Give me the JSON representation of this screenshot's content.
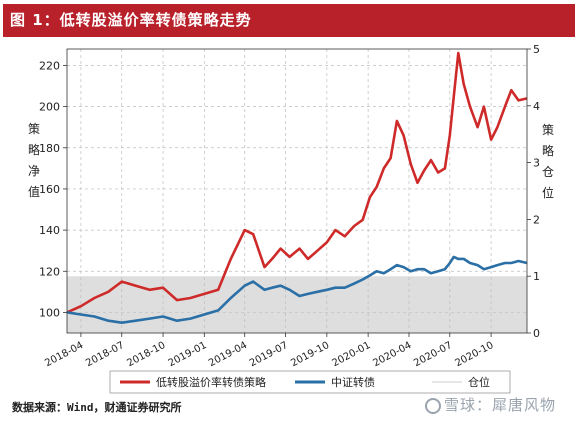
{
  "title": "图 1：低转股溢价率转债策略走势",
  "source": "数据来源：Wind，财通证券研究所",
  "watermark": "雪球：犀唐风物",
  "colors": {
    "brand": "#b8202a",
    "strategy": "#cf2a2a",
    "index": "#2a6fa6",
    "position": "#dedede"
  },
  "chart_data": {
    "type": "line",
    "x_tick_labels": [
      "2018-04",
      "2018-07",
      "2018-10",
      "2019-01",
      "2019-04",
      "2019-07",
      "2019-10",
      "2020-01",
      "2020-04",
      "2020-07",
      "2020-10"
    ],
    "x_ticks": [
      "2018-04-01",
      "2018-07-01",
      "2018-10-01",
      "2019-01-01",
      "2019-04-01",
      "2019-07-01",
      "2019-10-01",
      "2020-01-01",
      "2020-04-01",
      "2020-07-01",
      "2020-10-01"
    ],
    "x_range": [
      "2018-03-01",
      "2020-12-20"
    ],
    "ylabel_left": "策略净值",
    "ylabel_right": "策略仓位",
    "ylim_left": [
      90,
      228
    ],
    "yticks_left": [
      100,
      120,
      140,
      160,
      180,
      200,
      220
    ],
    "ylim_right": [
      0,
      5
    ],
    "yticks_right": [
      0,
      1,
      2,
      3,
      4,
      5
    ],
    "grid": true,
    "legend_position": "bottom",
    "series": [
      {
        "name": "低转股溢价率转债策略",
        "axis": "left",
        "color": "#cf2a2a",
        "x": [
          "2018-03-01",
          "2018-04-01",
          "2018-05-01",
          "2018-06-01",
          "2018-07-01",
          "2018-08-01",
          "2018-09-01",
          "2018-10-01",
          "2018-11-01",
          "2018-12-01",
          "2019-01-01",
          "2019-02-01",
          "2019-03-01",
          "2019-04-01",
          "2019-04-20",
          "2019-05-15",
          "2019-06-01",
          "2019-06-20",
          "2019-07-10",
          "2019-08-01",
          "2019-08-20",
          "2019-09-10",
          "2019-10-01",
          "2019-10-20",
          "2019-11-10",
          "2019-12-01",
          "2019-12-20",
          "2020-01-05",
          "2020-01-20",
          "2020-02-05",
          "2020-02-20",
          "2020-03-05",
          "2020-03-20",
          "2020-04-05",
          "2020-04-20",
          "2020-05-05",
          "2020-05-20",
          "2020-06-05",
          "2020-06-20",
          "2020-07-01",
          "2020-07-10",
          "2020-07-20",
          "2020-08-01",
          "2020-08-15",
          "2020-09-01",
          "2020-09-15",
          "2020-10-01",
          "2020-10-15",
          "2020-11-01",
          "2020-11-15",
          "2020-12-01",
          "2020-12-20"
        ],
        "y": [
          100,
          103,
          107,
          110,
          115,
          113,
          111,
          112,
          106,
          107,
          109,
          111,
          126,
          140,
          138,
          122,
          126,
          131,
          127,
          131,
          126,
          130,
          134,
          140,
          137,
          142,
          145,
          156,
          161,
          170,
          175,
          193,
          186,
          172,
          163,
          169,
          174,
          168,
          170,
          186,
          205,
          226,
          211,
          200,
          190,
          200,
          184,
          190,
          200,
          208,
          203,
          204
        ]
      },
      {
        "name": "中证转债",
        "axis": "left",
        "color": "#2a6fa6",
        "x": [
          "2018-03-01",
          "2018-04-01",
          "2018-05-01",
          "2018-06-01",
          "2018-07-01",
          "2018-08-01",
          "2018-09-01",
          "2018-10-01",
          "2018-11-01",
          "2018-12-01",
          "2019-01-01",
          "2019-02-01",
          "2019-03-01",
          "2019-04-01",
          "2019-04-20",
          "2019-05-15",
          "2019-06-01",
          "2019-06-20",
          "2019-07-10",
          "2019-08-01",
          "2019-08-20",
          "2019-09-10",
          "2019-10-01",
          "2019-10-20",
          "2019-11-10",
          "2019-12-01",
          "2019-12-20",
          "2020-01-05",
          "2020-01-20",
          "2020-02-05",
          "2020-02-20",
          "2020-03-05",
          "2020-03-20",
          "2020-04-05",
          "2020-04-20",
          "2020-05-05",
          "2020-05-20",
          "2020-06-05",
          "2020-06-20",
          "2020-07-01",
          "2020-07-10",
          "2020-07-20",
          "2020-08-01",
          "2020-08-15",
          "2020-09-01",
          "2020-09-15",
          "2020-10-01",
          "2020-10-15",
          "2020-11-01",
          "2020-11-15",
          "2020-12-01",
          "2020-12-20"
        ],
        "y": [
          100,
          99,
          98,
          96,
          95,
          96,
          97,
          98,
          96,
          97,
          99,
          101,
          107,
          113,
          115,
          111,
          112,
          113,
          111,
          108,
          109,
          110,
          111,
          112,
          112,
          114,
          116,
          118,
          120,
          119,
          121,
          123,
          122,
          120,
          121,
          121,
          119,
          120,
          121,
          124,
          127,
          126,
          126,
          124,
          123,
          121,
          122,
          123,
          124,
          124,
          125,
          124
        ]
      },
      {
        "name": "仓位",
        "axis": "right",
        "color": "#dedede",
        "type": "area",
        "x": [
          "2018-03-01",
          "2020-12-20"
        ],
        "y": [
          1,
          1
        ]
      }
    ]
  }
}
